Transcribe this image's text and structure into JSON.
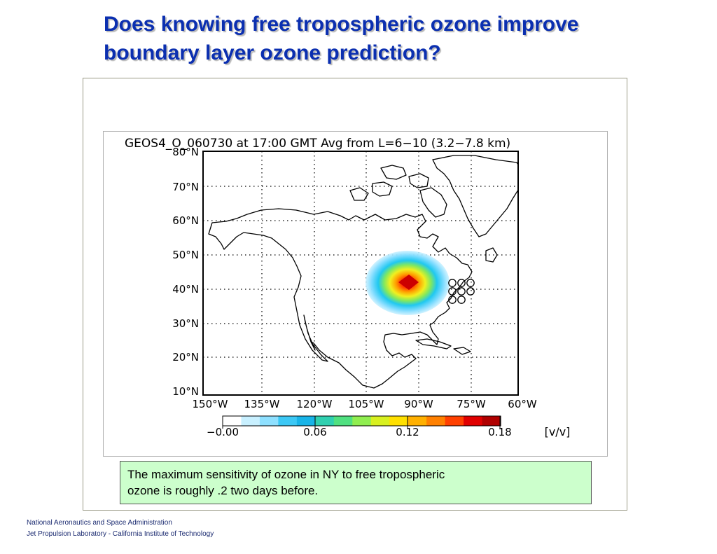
{
  "slide": {
    "title_line1": "Does knowing free tropospheric ozone improve",
    "title_line2": "boundary layer ozone prediction?",
    "title_color": "#0b2fb0"
  },
  "map": {
    "title": "GEOS4_O_060730 at 17:00 GMT Avg from L=6−10 (3.2−7.8 km)",
    "lat_labels": [
      "80°N",
      "70°N",
      "60°N",
      "50°N",
      "40°N",
      "30°N",
      "20°N",
      "10°N"
    ],
    "lon_labels": [
      "150°W",
      "135°W",
      "120°W",
      "105°W",
      "90°W",
      "75°W",
      "60°W"
    ],
    "colorbar": {
      "tick_labels": [
        "−0.00",
        "0.06",
        "0.12",
        "0.18"
      ],
      "units": "[v/v]",
      "colors": [
        "#ffffff",
        "#c8f0ff",
        "#8ee0ff",
        "#3cc8f5",
        "#18b4e8",
        "#30d0b0",
        "#50e080",
        "#90ee50",
        "#d8f020",
        "#ffe000",
        "#ffb000",
        "#ff8000",
        "#ff4000",
        "#e00000",
        "#b00000"
      ]
    },
    "highlight_colors": [
      "#ff0000",
      "#ff8800",
      "#ffff00",
      "#00e0ff"
    ]
  },
  "note": {
    "line1": "The maximum sensitivity of ozone in NY to free tropospheric",
    "line2": "ozone is roughly .2 two days before.",
    "background": "#ccffcc"
  },
  "footer": {
    "line1": "National Aeronautics and Space Administration",
    "line2": "Jet Propulsion Laboratory - California Institute of Technology"
  }
}
